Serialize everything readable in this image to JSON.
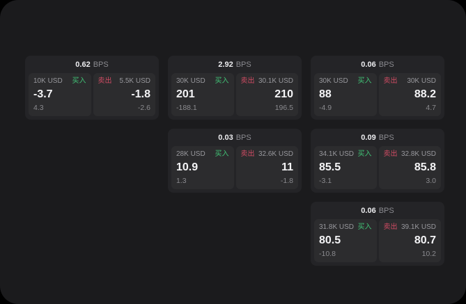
{
  "labels": {
    "bps": "BPS",
    "buy": "买入",
    "sell": "卖出"
  },
  "colors": {
    "surface": "#1b1b1d",
    "card": "#242427",
    "panel": "#2c2c2e",
    "buy_green": "#41c175",
    "sell_red": "#cf4b63"
  },
  "cards": [
    {
      "bps": "0.62",
      "buy": {
        "amount": "10K USD",
        "main": "-3.7",
        "sub": "4.3"
      },
      "sell": {
        "amount": "5.5K USD",
        "main": "-1.8",
        "sub": "-2.6"
      }
    },
    {
      "bps": "2.92",
      "buy": {
        "amount": "30K USD",
        "main": "201",
        "sub": "-188.1"
      },
      "sell": {
        "amount": "30.1K USD",
        "main": "210",
        "sub": "196.5"
      }
    },
    {
      "bps": "0.06",
      "buy": {
        "amount": "30K USD",
        "main": "88",
        "sub": "-4.9"
      },
      "sell": {
        "amount": "30K USD",
        "main": "88.2",
        "sub": "4.7"
      }
    },
    {
      "bps": "0.03",
      "buy": {
        "amount": "28K USD",
        "main": "10.9",
        "sub": "1.3"
      },
      "sell": {
        "amount": "32.6K USD",
        "main": "11",
        "sub": "-1.8"
      }
    },
    {
      "bps": "0.09",
      "buy": {
        "amount": "34.1K USD",
        "main": "85.5",
        "sub": "-3.1"
      },
      "sell": {
        "amount": "32.8K USD",
        "main": "85.8",
        "sub": "3.0"
      }
    },
    {
      "bps": "0.06",
      "buy": {
        "amount": "31.8K USD",
        "main": "80.5",
        "sub": "-10.8"
      },
      "sell": {
        "amount": "39.1K USD",
        "main": "80.7",
        "sub": "10.2"
      }
    }
  ]
}
